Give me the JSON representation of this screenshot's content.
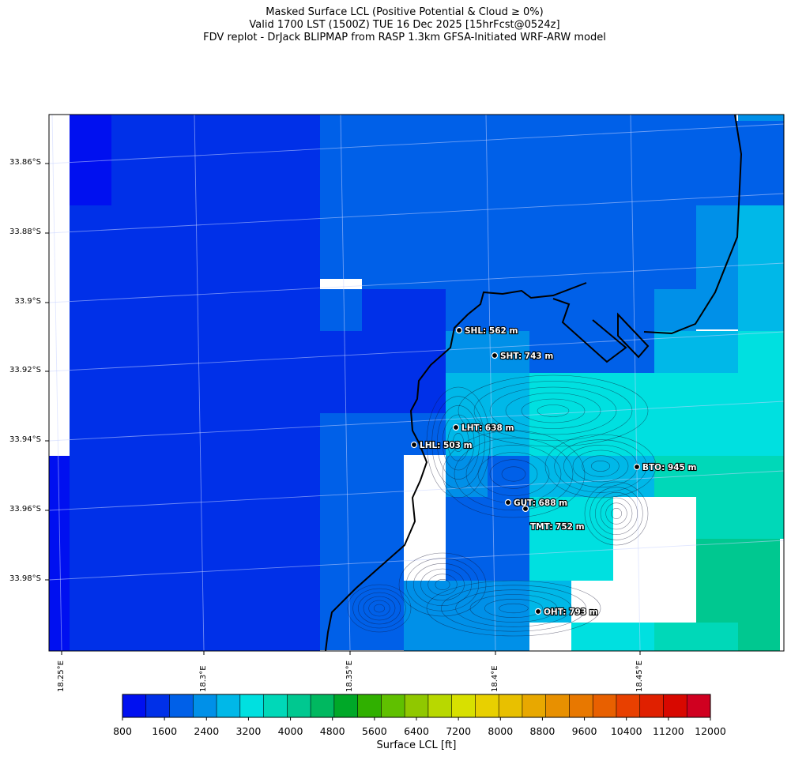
{
  "title": {
    "line1": "Masked Surface LCL (Positive Potential & Cloud ≥ 0%)",
    "line2": "Valid 1700 LST (1500Z) TUE 16 Dec 2025 [15hrFcst@0524z]",
    "line3": "FDV replot - DrJack BLIPMAP from RASP 1.3km GFSA-Initiated WRF-ARW model"
  },
  "lat_labels": [
    "33.86°S",
    "33.88°S",
    "33.9°S",
    "33.92°S",
    "33.94°S",
    "33.96°S",
    "33.98°S"
  ],
  "lon_labels": [
    "18.25°E",
    "18.3°E",
    "18.35°E",
    "18.4°E",
    "18.45°E"
  ],
  "stations": [
    {
      "label": "SHL: 562 m"
    },
    {
      "label": "SHT: 743 m"
    },
    {
      "label": "LHT: 638 m"
    },
    {
      "label": "LHL: 503 m"
    },
    {
      "label": "BTO: 945 m"
    },
    {
      "label": "GUT: 688 m"
    },
    {
      "label": "TMT: 752 m"
    },
    {
      "label": "OHT: 793 m"
    }
  ],
  "colorbar": {
    "label": "Surface LCL [ft]",
    "ticks": [
      "800",
      "1600",
      "2400",
      "3200",
      "4000",
      "4800",
      "5600",
      "6400",
      "7200",
      "8000",
      "8800",
      "9600",
      "10400",
      "11200",
      "12000"
    ],
    "colors": [
      "#0010f0",
      "#0030e8",
      "#0060e8",
      "#0090e8",
      "#00b8e8",
      "#00e0e0",
      "#00d8b8",
      "#00c890",
      "#00b860",
      "#00a828",
      "#30b000",
      "#60c000",
      "#90c800",
      "#b8d800",
      "#d8e000",
      "#e8d000",
      "#e8c000",
      "#e8a800",
      "#e89000",
      "#e87800",
      "#e86000",
      "#e84000",
      "#e02000",
      "#d80800",
      "#d00020"
    ]
  }
}
